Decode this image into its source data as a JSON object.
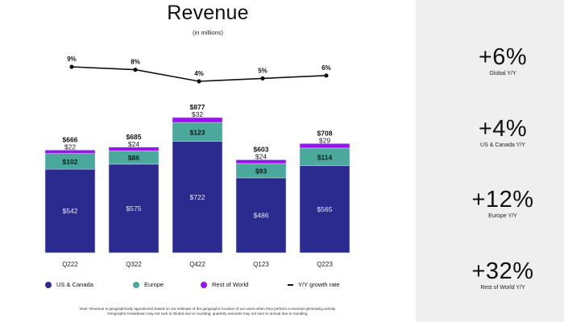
{
  "header": {
    "title": "Revenue",
    "subtitle": "(in millions)"
  },
  "colors": {
    "us_canada": "#2a2a8f",
    "europe": "#4aa89c",
    "rest_of_world": "#9b0ff0",
    "growth_line": "#111111",
    "panel_bg": "#efefef"
  },
  "chart_data": {
    "type": "bar",
    "stacked": true,
    "title": "Revenue",
    "subtitle": "(in millions)",
    "categories": [
      "Q222",
      "Q322",
      "Q422",
      "Q123",
      "Q223"
    ],
    "series": [
      {
        "name": "US & Canada",
        "values": [
          542,
          575,
          722,
          486,
          565
        ],
        "labels": [
          "$542",
          "$575",
          "$722",
          "$486",
          "$565"
        ]
      },
      {
        "name": "Europe",
        "values": [
          102,
          86,
          123,
          93,
          114
        ],
        "labels": [
          "$102",
          "$86",
          "$123",
          "$93",
          "$114"
        ]
      },
      {
        "name": "Rest of World",
        "values": [
          22,
          24,
          32,
          24,
          29
        ],
        "labels": [
          "$22",
          "$24",
          "$32",
          "$24",
          "$29"
        ]
      }
    ],
    "totals": [
      666,
      685,
      877,
      603,
      708
    ],
    "total_labels": [
      "$666",
      "$685",
      "$877",
      "$603",
      "$708"
    ],
    "line_series": {
      "name": "Y/Y growth rate",
      "values": [
        9,
        8,
        4,
        5,
        6
      ],
      "labels": [
        "9%",
        "8%",
        "4%",
        "5%",
        "6%"
      ]
    },
    "xlabel": "",
    "ylabel": "",
    "ylim": [
      0,
      877
    ],
    "grid": false,
    "legend_position": "bottom",
    "legend": [
      "US & Canada",
      "Europe",
      "Rest of World",
      "Y/Y growth rate"
    ]
  },
  "note": {
    "line1": "Note: Revenue is geographically apportioned based on our estimate of the geographic location of our users when they perform a revenue-generating activity.",
    "line2": "Geographic breakdown may not sum to Global due to rounding; quarterly amounts may not sum to annual due to rounding."
  },
  "kpis": [
    {
      "value": "+6%",
      "label": "Global Y/Y"
    },
    {
      "value": "+4%",
      "label": "US & Canada Y/Y"
    },
    {
      "value": "+12%",
      "label": "Europe Y/Y"
    },
    {
      "value": "+32%",
      "label": "Rest of World Y/Y"
    }
  ]
}
